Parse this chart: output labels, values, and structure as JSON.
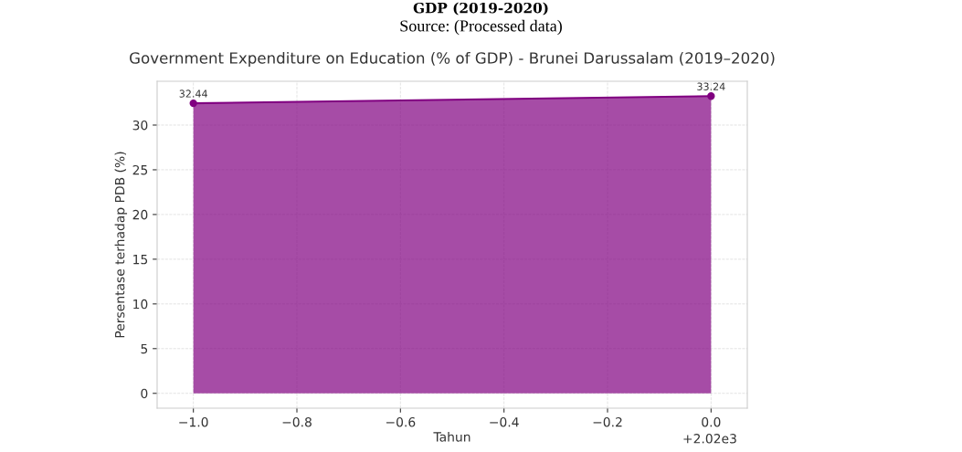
{
  "chart_data": {
    "type": "area",
    "title": "Government Expenditure on Education (% of GDP) - Brunei Darussalam (2019–2020)",
    "xlabel": "Tahun",
    "ylabel": "Persentase terhadap PDB (%)",
    "annotations": [
      "GDP (2019-2020)",
      "Source: (Processed data)",
      "+2.02e3"
    ],
    "x": [
      -1,
      0
    ],
    "series": [
      {
        "color": "#800080",
        "values": [
          32.44,
          33.24
        ]
      }
    ],
    "data_labels": true,
    "marker": "circle",
    "grid": true,
    "legend": false,
    "xlim": [
      -1.07,
      0.07
    ],
    "xticks": [
      {
        "value": -1,
        "label": "−1.0"
      },
      {
        "value": -0.8,
        "label": "−0.8"
      },
      {
        "value": -0.6,
        "label": "−0.6"
      },
      {
        "value": -0.4,
        "label": "−0.4"
      },
      {
        "value": -0.2,
        "label": "−0.2"
      },
      {
        "value": 0,
        "label": "0.0"
      }
    ],
    "ylim": [
      -1.66,
      34.9
    ],
    "yticks": [
      0,
      5,
      10,
      15,
      20,
      25,
      30
    ]
  }
}
